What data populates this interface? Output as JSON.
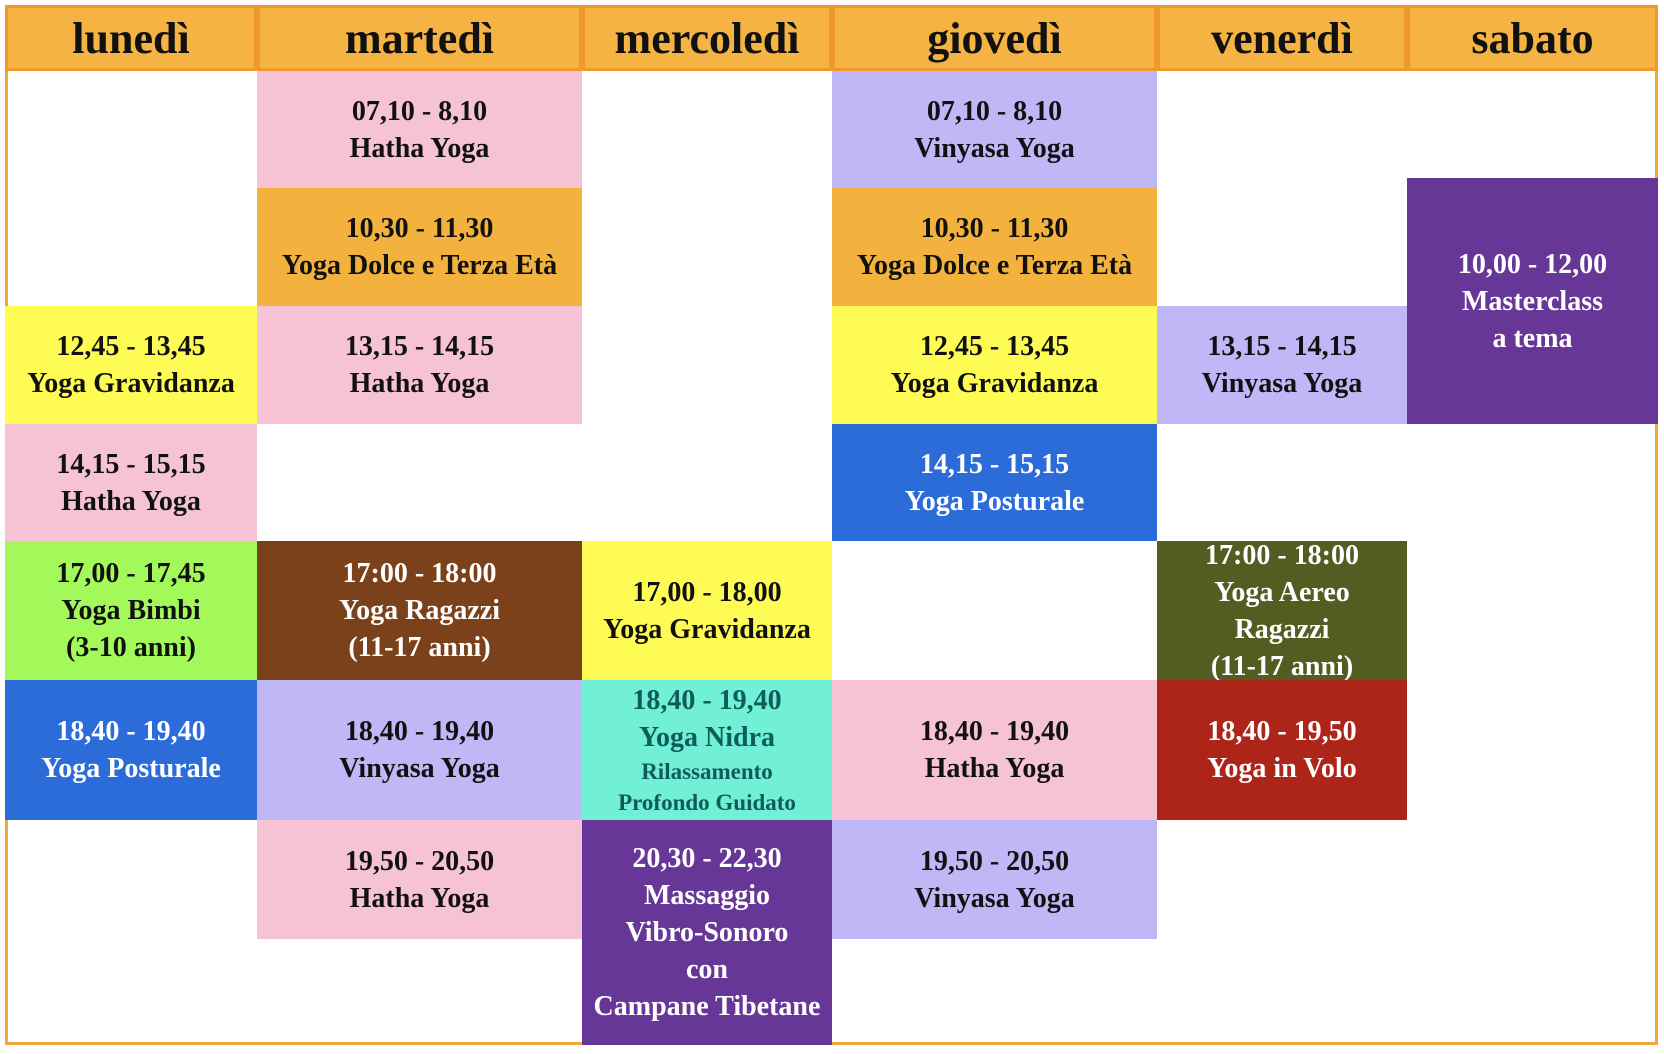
{
  "days": [
    {
      "name": "lunedì",
      "classes": [
        {
          "lines": [
            "12,45 - 13,45",
            "Yoga Gravidanza"
          ]
        },
        {
          "lines": [
            "14,15 - 15,15",
            "Hatha Yoga"
          ]
        },
        {
          "lines": [
            "17,00 - 17,45",
            "Yoga Bimbi",
            "(3-10 anni)"
          ]
        },
        {
          "lines": [
            "18,40 - 19,40",
            "Yoga Posturale"
          ]
        }
      ]
    },
    {
      "name": "martedì",
      "classes": [
        {
          "lines": [
            "07,10 - 8,10",
            "Hatha Yoga"
          ]
        },
        {
          "lines": [
            "10,30 - 11,30",
            "Yoga Dolce e Terza Età"
          ]
        },
        {
          "lines": [
            "13,15 - 14,15",
            "Hatha Yoga"
          ]
        },
        {
          "lines": [
            "17:00 - 18:00",
            "Yoga Ragazzi",
            "(11-17 anni)"
          ]
        },
        {
          "lines": [
            "18,40 - 19,40",
            "Vinyasa Yoga"
          ]
        },
        {
          "lines": [
            "19,50 - 20,50",
            "Hatha Yoga"
          ]
        }
      ]
    },
    {
      "name": "mercoledì",
      "classes": [
        {
          "lines": [
            "17,00 - 18,00",
            "Yoga Gravidanza"
          ]
        },
        {
          "lines": [
            "18,40 - 19,40",
            "Yoga Nidra",
            "Rilassamento",
            "Profondo Guidato"
          ]
        },
        {
          "lines": [
            "20,30 - 22,30",
            "Massaggio",
            "Vibro-Sonoro",
            "con",
            "Campane Tibetane"
          ]
        }
      ]
    },
    {
      "name": "giovedì",
      "classes": [
        {
          "lines": [
            "07,10 - 8,10",
            "Vinyasa Yoga"
          ]
        },
        {
          "lines": [
            "10,30 - 11,30",
            "Yoga Dolce e Terza Età"
          ]
        },
        {
          "lines": [
            "12,45 - 13,45",
            "Yoga Gravidanza"
          ]
        },
        {
          "lines": [
            "14,15 - 15,15",
            "Yoga Posturale"
          ]
        },
        {
          "lines": [
            "18,40 - 19,40",
            "Hatha Yoga"
          ]
        },
        {
          "lines": [
            "19,50 - 20,50",
            "Vinyasa Yoga"
          ]
        }
      ]
    },
    {
      "name": "venerdì",
      "classes": [
        {
          "lines": [
            "13,15 - 14,15",
            "Vinyasa Yoga"
          ]
        },
        {
          "lines": [
            "17:00 - 18:00",
            "Yoga Aereo",
            "Ragazzi",
            "(11-17 anni)"
          ]
        },
        {
          "lines": [
            "18,40 - 19,50",
            "Yoga in Volo"
          ]
        }
      ]
    },
    {
      "name": "sabato",
      "classes": [
        {
          "lines": [
            "10,00 - 12,00",
            "Masterclass",
            "a tema"
          ]
        }
      ]
    }
  ]
}
